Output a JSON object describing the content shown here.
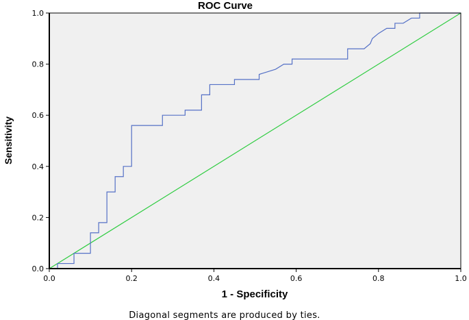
{
  "chart_data": {
    "type": "line",
    "title": "ROC Curve",
    "xlabel": "1 - Specificity",
    "ylabel": "Sensitivity",
    "footnote": "Diagonal segments are produced by ties.",
    "xlim": [
      0.0,
      1.0
    ],
    "ylim": [
      0.0,
      1.0
    ],
    "x_ticks": [
      "0.0",
      "0.2",
      "0.4",
      "0.6",
      "0.8",
      "1.0"
    ],
    "y_ticks": [
      "0.0",
      "0.2",
      "0.4",
      "0.6",
      "0.8",
      "1.0"
    ],
    "grid": false,
    "colors": {
      "roc": "#5470c6",
      "reference": "#2ecc40",
      "plot_bg": "#f0f0f0",
      "axis": "#000000"
    },
    "series": [
      {
        "points": [
          [
            0.0,
            0.0
          ],
          [
            0.02,
            0.0
          ],
          [
            0.02,
            0.02
          ],
          [
            0.06,
            0.02
          ],
          [
            0.06,
            0.06
          ],
          [
            0.1,
            0.06
          ],
          [
            0.1,
            0.14
          ],
          [
            0.12,
            0.14
          ],
          [
            0.12,
            0.18
          ],
          [
            0.14,
            0.18
          ],
          [
            0.14,
            0.3
          ],
          [
            0.16,
            0.3
          ],
          [
            0.16,
            0.36
          ],
          [
            0.18,
            0.36
          ],
          [
            0.18,
            0.4
          ],
          [
            0.2,
            0.4
          ],
          [
            0.2,
            0.56
          ],
          [
            0.275,
            0.56
          ],
          [
            0.275,
            0.6
          ],
          [
            0.33,
            0.6
          ],
          [
            0.33,
            0.62
          ],
          [
            0.37,
            0.62
          ],
          [
            0.37,
            0.68
          ],
          [
            0.39,
            0.68
          ],
          [
            0.39,
            0.72
          ],
          [
            0.45,
            0.72
          ],
          [
            0.45,
            0.74
          ],
          [
            0.51,
            0.74
          ],
          [
            0.51,
            0.76
          ],
          [
            0.53,
            0.77
          ],
          [
            0.55,
            0.78
          ],
          [
            0.57,
            0.8
          ],
          [
            0.59,
            0.8
          ],
          [
            0.59,
            0.82
          ],
          [
            0.725,
            0.82
          ],
          [
            0.725,
            0.86
          ],
          [
            0.765,
            0.86
          ],
          [
            0.78,
            0.88
          ],
          [
            0.785,
            0.9
          ],
          [
            0.8,
            0.92
          ],
          [
            0.82,
            0.94
          ],
          [
            0.84,
            0.94
          ],
          [
            0.84,
            0.96
          ],
          [
            0.86,
            0.96
          ],
          [
            0.88,
            0.98
          ],
          [
            0.9,
            0.98
          ],
          [
            0.9,
            1.0
          ],
          [
            1.0,
            1.0
          ]
        ]
      },
      {
        "points": [
          [
            0.0,
            0.0
          ],
          [
            1.0,
            1.0
          ]
        ]
      }
    ]
  }
}
